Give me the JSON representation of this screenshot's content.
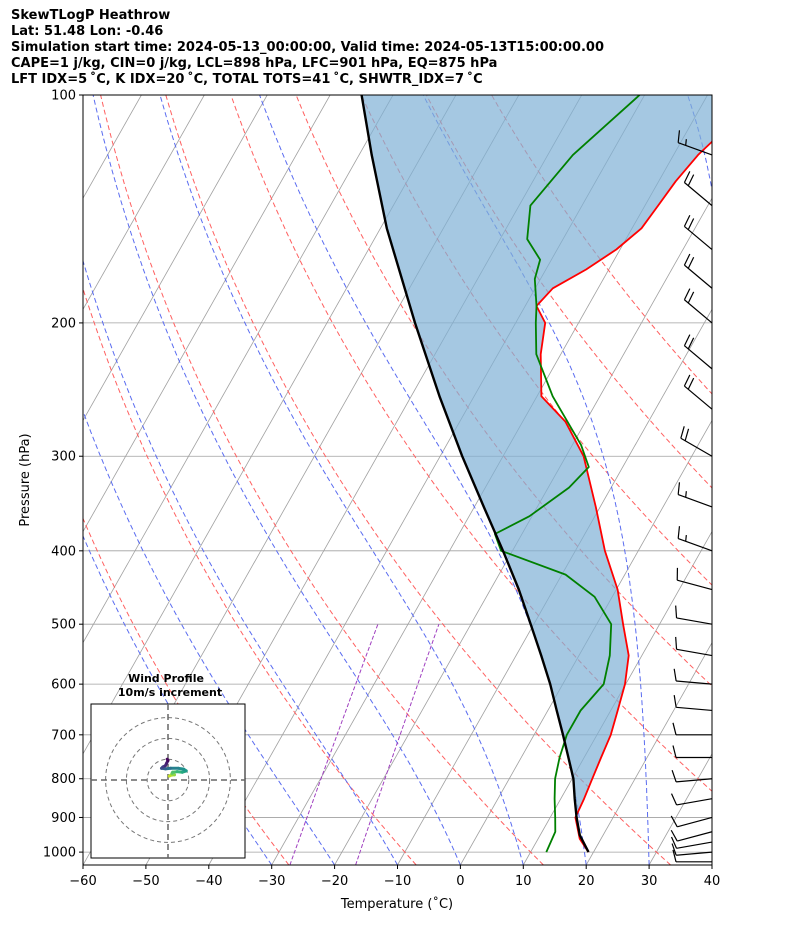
{
  "header": {
    "line1": "SkewTLogP Heathrow",
    "line2": "Lat: 51.48   Lon: -0.46",
    "line3": "Simulation start time: 2024-05-13_00:00:00, Valid time: 2024-05-13T15:00:00.00",
    "line4": "CAPE=1 j/kg, CIN=0 j/kg, LCL=898 hPa, LFC=901 hPa, EQ=875 hPa",
    "line5": "LFT IDX=5 ˚C, K IDX=20 ˚C, TOTAL TOTS=41 ˚C, SHWTR_IDX=7 ˚C"
  },
  "colors": {
    "temperature": "#ff0000",
    "dewpoint": "#008000",
    "parcel": "#000000",
    "cape_fill": "#7fb1d6",
    "dry_adiabat": "#ff6060",
    "moist_adiabat": "#5a6cf0",
    "mixing_ratio": "#a040c0",
    "isotherm": "#a0a0a0"
  },
  "chart_data": {
    "type": "line",
    "title": "SkewTLogP Heathrow",
    "xlabel": "Temperature (˚C)",
    "ylabel": "Pressure (hPa)",
    "xlim": [
      -60,
      40
    ],
    "ylim": [
      1040,
      100
    ],
    "x_ticks": [
      "−60",
      "−50",
      "−40",
      "−30",
      "−20",
      "−10",
      "0",
      "10",
      "20",
      "30",
      "40"
    ],
    "x_tick_values": [
      -60,
      -50,
      -40,
      -30,
      -20,
      -10,
      0,
      10,
      20,
      30,
      40
    ],
    "y_ticks": [
      "100",
      "200",
      "300",
      "400",
      "500",
      "600",
      "700",
      "800",
      "900",
      "1000"
    ],
    "y_tick_values": [
      100,
      200,
      300,
      400,
      500,
      600,
      700,
      800,
      900,
      1000
    ],
    "series": [
      {
        "name": "temperature",
        "points": [
          [
            1000,
            19.2
          ],
          [
            960,
            16.6
          ],
          [
            900,
            14.0
          ],
          [
            850,
            13.7
          ],
          [
            800,
            13.2
          ],
          [
            750,
            12.7
          ],
          [
            700,
            12.2
          ],
          [
            650,
            11.1
          ],
          [
            600,
            9.9
          ],
          [
            550,
            7.9
          ],
          [
            500,
            4.2
          ],
          [
            450,
            0.2
          ],
          [
            400,
            -5.3
          ],
          [
            350,
            -10.7
          ],
          [
            300,
            -17.2
          ],
          [
            270,
            -23.2
          ],
          [
            250,
            -29.3
          ],
          [
            220,
            -33.2
          ],
          [
            200,
            -35.3
          ],
          [
            190,
            -38.2
          ],
          [
            180,
            -37.2
          ],
          [
            170,
            -33.6
          ],
          [
            160,
            -30.6
          ],
          [
            150,
            -28.5
          ],
          [
            140,
            -27.9
          ],
          [
            130,
            -27.3
          ],
          [
            120,
            -26.1
          ],
          [
            110,
            -23.9
          ],
          [
            100,
            -20.9
          ]
        ]
      },
      {
        "name": "dewpoint",
        "points": [
          [
            1000,
            12.5
          ],
          [
            940,
            12.1
          ],
          [
            900,
            10.8
          ],
          [
            850,
            9.0
          ],
          [
            800,
            7.3
          ],
          [
            750,
            6.1
          ],
          [
            700,
            5.2
          ],
          [
            650,
            5.2
          ],
          [
            600,
            6.5
          ],
          [
            550,
            4.9
          ],
          [
            500,
            2.3
          ],
          [
            460,
            -2.8
          ],
          [
            430,
            -9.4
          ],
          [
            400,
            -21.8
          ],
          [
            380,
            -24.3
          ],
          [
            360,
            -20.4
          ],
          [
            330,
            -16.7
          ],
          [
            310,
            -15.4
          ],
          [
            290,
            -18.6
          ],
          [
            250,
            -27.5
          ],
          [
            220,
            -33.9
          ],
          [
            200,
            -36.8
          ],
          [
            190,
            -38.2
          ],
          [
            175,
            -40.9
          ],
          [
            165,
            -41.8
          ],
          [
            155,
            -45.7
          ],
          [
            140,
            -48.2
          ],
          [
            120,
            -46.0
          ],
          [
            100,
            -40.8
          ]
        ]
      },
      {
        "name": "parcel",
        "points": [
          [
            1000,
            19.2
          ],
          [
            950,
            16.3
          ],
          [
            900,
            14.2
          ],
          [
            850,
            12.2
          ],
          [
            800,
            10.2
          ],
          [
            750,
            7.5
          ],
          [
            700,
            4.6
          ],
          [
            650,
            1.4
          ],
          [
            600,
            -2.0
          ],
          [
            550,
            -6.0
          ],
          [
            500,
            -10.5
          ],
          [
            450,
            -15.5
          ],
          [
            400,
            -21.5
          ],
          [
            350,
            -28.5
          ],
          [
            300,
            -36.5
          ],
          [
            250,
            -45.5
          ],
          [
            200,
            -56.0
          ],
          [
            150,
            -69.0
          ],
          [
            120,
            -78.0
          ],
          [
            100,
            -85.0
          ]
        ]
      }
    ],
    "annotations": [
      "Wind Profile",
      "10m/s increment"
    ]
  },
  "wind_barbs": [
    {
      "p": 1030,
      "dir": 270,
      "spd": 10
    },
    {
      "p": 1000,
      "dir": 265,
      "spd": 10
    },
    {
      "p": 970,
      "dir": 260,
      "spd": 10
    },
    {
      "p": 940,
      "dir": 255,
      "spd": 10
    },
    {
      "p": 900,
      "dir": 255,
      "spd": 10
    },
    {
      "p": 850,
      "dir": 260,
      "spd": 10
    },
    {
      "p": 800,
      "dir": 265,
      "spd": 10
    },
    {
      "p": 750,
      "dir": 270,
      "spd": 10
    },
    {
      "p": 700,
      "dir": 270,
      "spd": 10
    },
    {
      "p": 650,
      "dir": 275,
      "spd": 10
    },
    {
      "p": 600,
      "dir": 275,
      "spd": 10
    },
    {
      "p": 550,
      "dir": 280,
      "spd": 10
    },
    {
      "p": 500,
      "dir": 280,
      "spd": 10
    },
    {
      "p": 450,
      "dir": 285,
      "spd": 10
    },
    {
      "p": 400,
      "dir": 290,
      "spd": 15
    },
    {
      "p": 350,
      "dir": 290,
      "spd": 15
    },
    {
      "p": 300,
      "dir": 300,
      "spd": 20
    },
    {
      "p": 260,
      "dir": 310,
      "spd": 20
    },
    {
      "p": 230,
      "dir": 310,
      "spd": 20
    },
    {
      "p": 200,
      "dir": 310,
      "spd": 20
    },
    {
      "p": 180,
      "dir": 310,
      "spd": 20
    },
    {
      "p": 160,
      "dir": 310,
      "spd": 20
    },
    {
      "p": 140,
      "dir": 310,
      "spd": 20
    },
    {
      "p": 120,
      "dir": 290,
      "spd": 15
    }
  ],
  "hodograph": {
    "title": "Wind Profile",
    "subtitle": "10m/s increment",
    "points": [
      [
        0.5,
        1.5
      ],
      [
        1.0,
        1.8
      ],
      [
        2.5,
        2.0
      ],
      [
        1.5,
        2.5
      ],
      [
        1.8,
        3.0
      ],
      [
        3.5,
        3.2
      ],
      [
        5.5,
        3.0
      ],
      [
        7.0,
        3.5
      ],
      [
        6.0,
        4.2
      ],
      [
        4.0,
        4.5
      ],
      [
        1.0,
        4.5
      ],
      [
        -1.0,
        4.3
      ],
      [
        -2.5,
        4.5
      ],
      [
        -2.0,
        5.0
      ],
      [
        -1.0,
        5.5
      ],
      [
        -0.5,
        6.5
      ],
      [
        0.0,
        7.5
      ],
      [
        -0.3,
        8.0
      ]
    ]
  }
}
